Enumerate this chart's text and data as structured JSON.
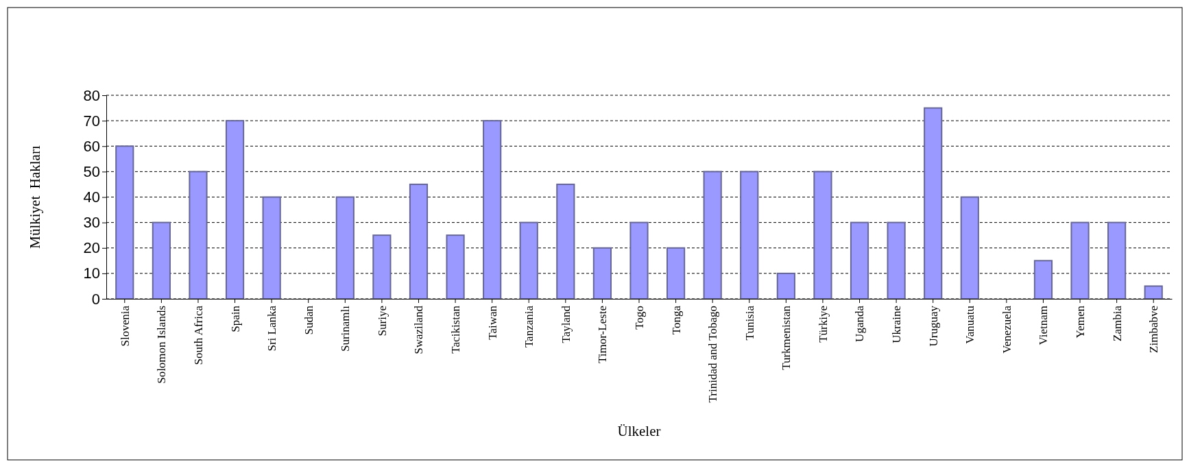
{
  "chart_data": {
    "type": "bar",
    "xlabel": "Ülkeler",
    "ylabel": "Mülkiyet  Hakları",
    "categories": [
      "Slovenia",
      "Solomon Islands",
      "South Africa",
      "Spain",
      "Sri Lanka",
      "Sudan",
      "Surinamlı",
      "Suriye",
      "Swaziland",
      "Tacikistan",
      "Taiwan",
      "Tanzania",
      "Tayland",
      "Timor-Leste",
      "Togo",
      "Tonga",
      "Trinidad and Tobago",
      "Tunisia",
      "Turkmenistan",
      "Türkiye",
      "Uganda",
      "Ukraine",
      "Uruguay",
      "Vanuatu",
      "Venezuela",
      "Vietnam",
      "Yemen",
      "Zambia",
      "Zimbabve"
    ],
    "values": [
      60,
      30,
      50,
      70,
      40,
      0,
      40,
      25,
      45,
      25,
      70,
      30,
      45,
      20,
      30,
      20,
      50,
      50,
      10,
      50,
      30,
      30,
      75,
      40,
      0,
      15,
      30,
      30,
      5
    ],
    "color": "#9999ff",
    "ylim": [
      0,
      80
    ],
    "yticks": [
      0,
      10,
      20,
      30,
      40,
      50,
      60,
      70,
      80
    ],
    "grid": "y"
  }
}
